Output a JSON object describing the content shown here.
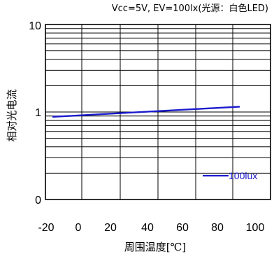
{
  "chart_data": {
    "type": "line",
    "title": "Vcc=5V, EV=100lx(光源：白色LED)",
    "xlabel": "周围温度[℃]",
    "ylabel": "相对光电流",
    "x_ticks": [
      "-20",
      "0",
      "20",
      "40",
      "60",
      "80",
      "100"
    ],
    "y_ticks": [
      "10",
      "1",
      "0"
    ],
    "y_scale": "log",
    "xlim": [
      -20,
      100
    ],
    "grid": true,
    "legend_position": "bottom-right",
    "series": [
      {
        "name": "100lux",
        "color": "#1a1acc",
        "x": [
          -15,
          90
        ],
        "y": [
          0.88,
          1.15
        ]
      }
    ]
  }
}
